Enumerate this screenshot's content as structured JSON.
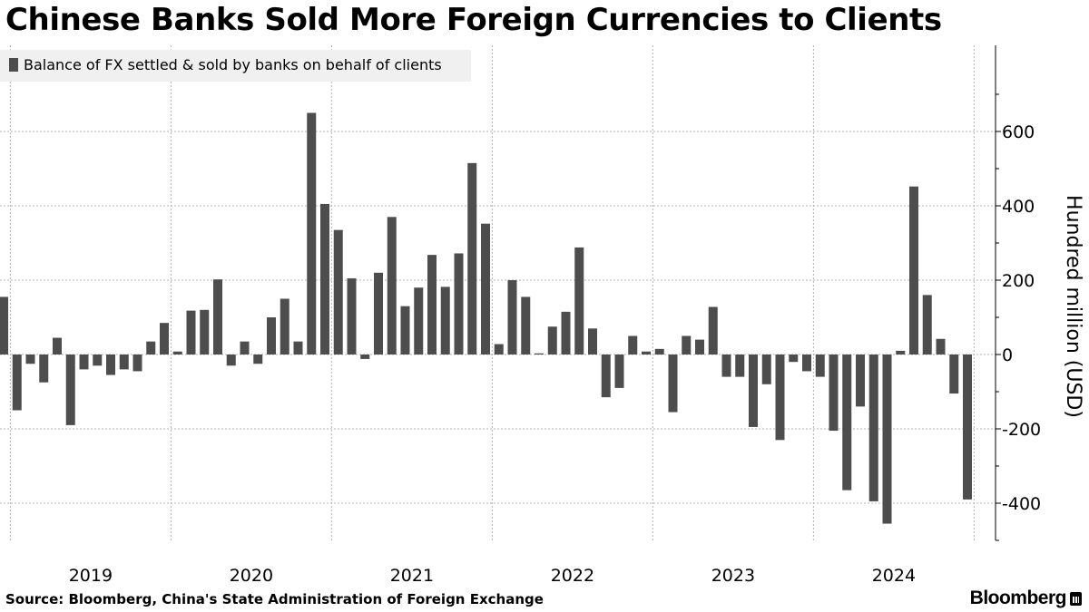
{
  "header": {
    "title": "Chinese Banks Sold More Foreign Currencies to Clients"
  },
  "footer": {
    "source": "Source: Bloomberg, China's State Administration of Foreign Exchange",
    "brand": "Bloomberg"
  },
  "colors": {
    "bar": "#4d4d4d",
    "grid": "#b3b3b3",
    "legend_bg": "#f0f0f0",
    "text": "#000000"
  },
  "chart_data": {
    "type": "bar",
    "title": "Chinese Banks Sold More Foreign Currencies to Clients",
    "series": [
      {
        "name": "Balance of FX settled & sold by banks on behalf of clients",
        "values": [
          155,
          -150,
          -25,
          -75,
          45,
          -190,
          -40,
          -30,
          -55,
          -40,
          -45,
          35,
          85,
          8,
          118,
          120,
          202,
          -30,
          35,
          -25,
          100,
          150,
          35,
          650,
          405,
          335,
          205,
          -12,
          220,
          370,
          130,
          180,
          268,
          182,
          272,
          515,
          352,
          28,
          200,
          155,
          3,
          75,
          115,
          288,
          70,
          -115,
          -90,
          50,
          8,
          15,
          -155,
          50,
          40,
          128,
          -60,
          -60,
          -195,
          -80,
          -230,
          -20,
          -45,
          -60,
          -205,
          -365,
          -140,
          -395,
          -455,
          10,
          452,
          160,
          42,
          -105,
          -390
        ]
      }
    ],
    "x_start": "2018-12",
    "x_labels": [
      "2019",
      "2020",
      "2021",
      "2022",
      "2023",
      "2024"
    ],
    "ylabel": "Hundred million (USD)",
    "yticks": [
      600,
      400,
      200,
      0,
      -200,
      -400
    ],
    "ylim": [
      -535,
      760
    ],
    "y_axis_side": "right",
    "grid": true,
    "legend_position": "top-left"
  }
}
